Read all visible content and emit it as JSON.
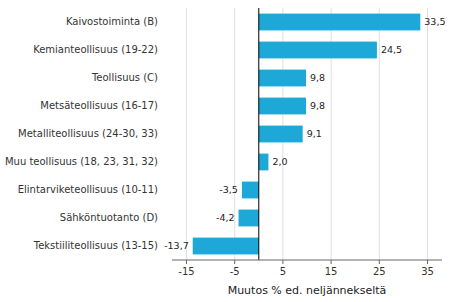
{
  "chart_data": {
    "type": "bar",
    "orientation": "horizontal",
    "categories": [
      "Tekstiiliteollisuus (13-15)",
      "Sähköntuotanto (D)",
      "Elintarviketeollisuus (10-11)",
      "Muu teollisuus (18, 23, 31, 32)",
      "Metalliteollisuus (24-30, 33)",
      "Metsäteollisuus (16-17)",
      "Teollisuus (C)",
      "Kemianteollisuus (19-22)",
      "Kaivostoiminta (B)"
    ],
    "values": [
      -13.7,
      -4.2,
      -3.5,
      2.0,
      9.1,
      9.8,
      9.8,
      24.5,
      33.5
    ],
    "value_labels": [
      "-13,7",
      "-4,2",
      "-3,5",
      "2,0",
      "9,1",
      "9,8",
      "9,8",
      "24,5",
      "33,5"
    ],
    "data_labels": true,
    "color": "#1da8d8",
    "xlabel": "Muutos % ed. neljännekseltä",
    "xlim": [
      -18,
      38
    ],
    "xticks": [
      -15,
      -5,
      5,
      15,
      25,
      35
    ],
    "grid": true
  }
}
